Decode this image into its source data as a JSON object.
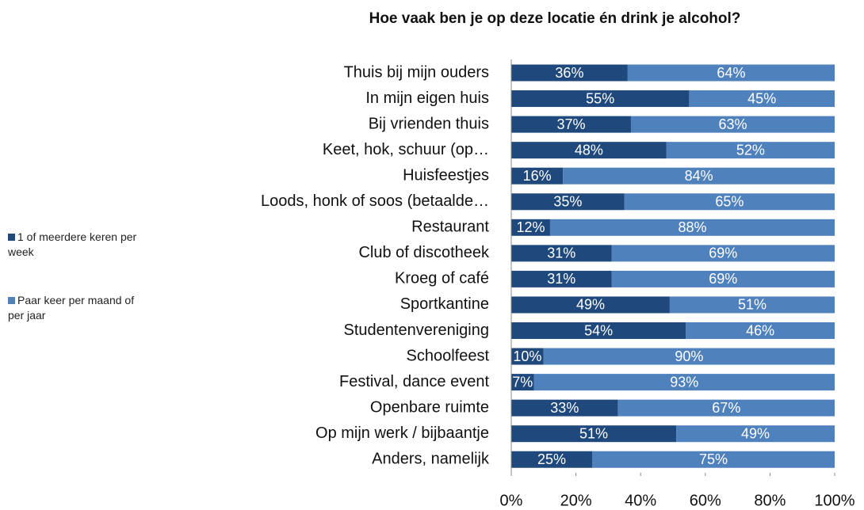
{
  "chart_data": {
    "type": "stacked-bar-horizontal",
    "title": "Hoe vaak ben je op deze locatie én drink je alcohol?",
    "categories": [
      "Thuis bij mijn ouders",
      "In mijn eigen huis",
      "Bij vrienden thuis",
      "Keet, hok, schuur (op…",
      "Huisfeestjes",
      "Loods, honk of soos (betaalde…",
      "Restaurant",
      "Club of discotheek",
      "Kroeg of café",
      "Sportkantine",
      "Studentenvereniging",
      "Schoolfeest",
      "Festival, dance event",
      "Openbare ruimte",
      "Op mijn werk / bijbaantje",
      "Anders, namelijk"
    ],
    "series": [
      {
        "name": "1 of meerdere keren per week",
        "color": "#1f497d",
        "values": [
          36,
          55,
          37,
          48,
          16,
          35,
          12,
          31,
          31,
          49,
          54,
          10,
          7,
          33,
          51,
          25
        ],
        "value_labels": [
          "36%",
          "55%",
          "37%",
          "48%",
          "16%",
          "35%",
          "12%",
          "31%",
          "31%",
          "49%",
          "54%",
          "10%",
          "7%",
          "33%",
          "51%",
          "25%"
        ]
      },
      {
        "name": "Paar keer per maand of per jaar",
        "color": "#4f81bd",
        "values": [
          64,
          45,
          63,
          52,
          84,
          65,
          88,
          69,
          69,
          51,
          46,
          90,
          93,
          67,
          49,
          75
        ],
        "value_labels": [
          "64%",
          "45%",
          "63%",
          "52%",
          "84%",
          "65%",
          "88%",
          "69%",
          "69%",
          "51%",
          "46%",
          "90%",
          "93%",
          "67%",
          "49%",
          "75%"
        ]
      }
    ],
    "xlim": [
      0,
      100
    ],
    "xticks": [
      {
        "value": 0,
        "label": "0%"
      },
      {
        "value": 20,
        "label": "20%"
      },
      {
        "value": 40,
        "label": "40%"
      },
      {
        "value": 60,
        "label": "60%"
      },
      {
        "value": 80,
        "label": "80%"
      },
      {
        "value": 100,
        "label": "100%"
      }
    ],
    "grid": false,
    "legend": "left"
  }
}
